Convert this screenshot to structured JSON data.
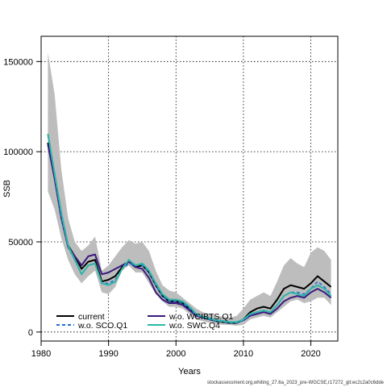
{
  "chart_data": {
    "type": "line",
    "xlabel": "Years",
    "ylabel": "SSB",
    "xlim": [
      1980,
      2024
    ],
    "ylim": [
      -5000,
      164000
    ],
    "xticks": [
      1980,
      1990,
      2000,
      2010,
      2020
    ],
    "yticks": [
      0,
      50000,
      100000,
      150000
    ],
    "grid": true,
    "legend_position": "bottom-left",
    "x": [
      1981,
      1982,
      1983,
      1984,
      1985,
      1986,
      1987,
      1988,
      1989,
      1990,
      1991,
      1992,
      1993,
      1994,
      1995,
      1996,
      1997,
      1998,
      1999,
      2000,
      2001,
      2002,
      2003,
      2004,
      2005,
      2006,
      2007,
      2008,
      2009,
      2010,
      2011,
      2012,
      2013,
      2014,
      2015,
      2016,
      2017,
      2018,
      2019,
      2020,
      2021,
      2022,
      2023
    ],
    "band": {
      "lower": [
        78000,
        68000,
        52000,
        40000,
        32000,
        27000,
        31000,
        34000,
        22000,
        21000,
        25000,
        34000,
        37000,
        33000,
        33000,
        27000,
        21000,
        17000,
        14000,
        14000,
        13000,
        10000,
        7000,
        6000,
        5000,
        4500,
        4000,
        4000,
        3500,
        4000,
        7000,
        8000,
        9000,
        8000,
        11000,
        14000,
        17000,
        18000,
        16000,
        17000,
        19000,
        19000,
        15000
      ],
      "upper": [
        155000,
        132000,
        90000,
        63000,
        50000,
        45000,
        48000,
        53000,
        34000,
        37000,
        42000,
        47000,
        51000,
        49000,
        50000,
        45000,
        34000,
        26000,
        23000,
        22000,
        19000,
        16000,
        13000,
        11000,
        10000,
        9000,
        8500,
        8000,
        9000,
        13000,
        18000,
        20000,
        22000,
        20000,
        28000,
        37000,
        41000,
        38000,
        36000,
        44000,
        47000,
        45000,
        40000
      ]
    },
    "series": [
      {
        "name": "current",
        "color": "#000000",
        "dash": "solid",
        "values": [
          105000,
          86000,
          65000,
          48000,
          42000,
          35000,
          39000,
          40000,
          28000,
          29000,
          31000,
          36000,
          39000,
          36000,
          37000,
          33000,
          26000,
          20000,
          17000,
          17000,
          16000,
          13000,
          9500,
          8000,
          7000,
          6000,
          5500,
          5000,
          5000,
          7000,
          11000,
          13000,
          14000,
          13000,
          18000,
          24000,
          26000,
          25000,
          24000,
          27000,
          31000,
          28000,
          25000
        ]
      },
      {
        "name": "w.o. WCIBTS.Q1",
        "color": "#3b1a7e",
        "dash": "solid",
        "values": [
          104000,
          85000,
          63000,
          47000,
          42000,
          37000,
          42000,
          43000,
          32000,
          33000,
          35000,
          37000,
          39000,
          36000,
          35000,
          30000,
          22000,
          18000,
          16000,
          16000,
          15000,
          12000,
          9000,
          8000,
          7000,
          6500,
          6000,
          5500,
          5500,
          6500,
          9000,
          10000,
          11000,
          10000,
          13000,
          17000,
          19000,
          20000,
          19000,
          22000,
          24000,
          22000,
          19000
        ]
      },
      {
        "name": "w.o. SCO.Q1",
        "color": "#1f6fd1",
        "dash": "dashed",
        "values": [
          109000,
          87000,
          64000,
          47000,
          40000,
          32000,
          37000,
          38000,
          27000,
          27000,
          29000,
          35000,
          38000,
          37000,
          37000,
          33000,
          26000,
          20000,
          17000,
          17000,
          16000,
          13000,
          9500,
          8000,
          7000,
          6000,
          5500,
          5000,
          5000,
          6500,
          9500,
          11000,
          12000,
          11000,
          15000,
          20000,
          22000,
          22000,
          21000,
          24000,
          28000,
          25000,
          21000
        ]
      },
      {
        "name": "w.o. SWC.Q4",
        "color": "#2cb5a8",
        "dash": "solid",
        "values": [
          110000,
          88000,
          66000,
          48000,
          40000,
          32000,
          37000,
          38000,
          27000,
          26000,
          28000,
          35000,
          40000,
          37000,
          38000,
          34000,
          27000,
          21000,
          18000,
          18000,
          17000,
          14000,
          10000,
          8500,
          7500,
          6500,
          6000,
          5500,
          5500,
          7000,
          10000,
          11000,
          12000,
          11000,
          15000,
          20000,
          22000,
          21000,
          20000,
          24000,
          26000,
          24000,
          20000
        ]
      }
    ]
  },
  "legend": [
    {
      "label": "current",
      "color": "#000000",
      "dash": "solid"
    },
    {
      "label": "w.o. SCO.Q1",
      "color": "#1f6fd1",
      "dash": "dashed"
    },
    {
      "label": "w.o. WCIBTS.Q1",
      "color": "#3b1a7e",
      "dash": "solid"
    },
    {
      "label": "w.o. SWC.Q4",
      "color": "#2cb5a8",
      "dash": "solid"
    }
  ],
  "footer_text": "stockassessment.org,whiting_27.6a_2023_pre-WGCSE,r17272_git:ec2c2a0c6dde"
}
